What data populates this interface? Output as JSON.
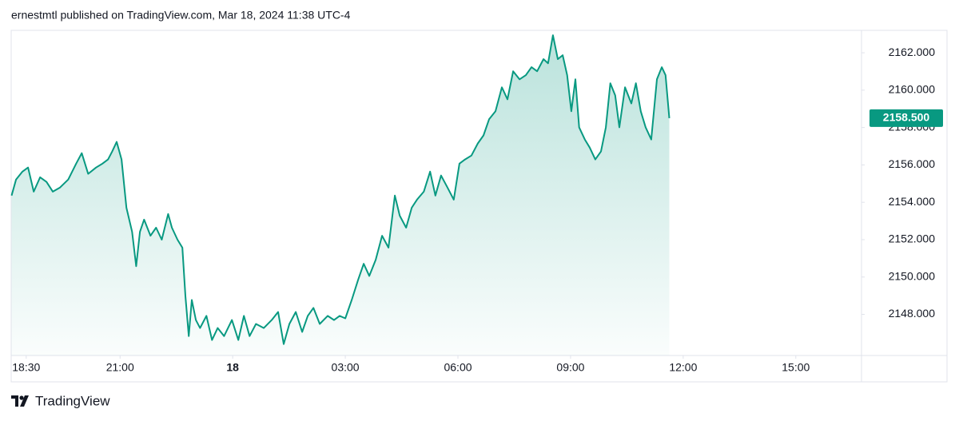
{
  "chart_data": {
    "type": "area",
    "header": "ernestmtl published on TradingView.com, Mar 18, 2024 11:38 UTC-4",
    "brand": "TradingView",
    "color": "#089981",
    "grid": false,
    "xlim": [
      18.1,
      40.75
    ],
    "ylim": [
      2145.8,
      2163.2
    ],
    "xticks": [
      {
        "value": 18.5,
        "label": "18:30"
      },
      {
        "value": 21,
        "label": "21:00"
      },
      {
        "value": 24,
        "label": "18"
      },
      {
        "value": 27,
        "label": "03:00"
      },
      {
        "value": 30,
        "label": "06:00"
      },
      {
        "value": 33,
        "label": "09:00"
      },
      {
        "value": 36,
        "label": "12:00"
      },
      {
        "value": 39,
        "label": "15:00"
      }
    ],
    "yticks": [
      {
        "value": 2148,
        "label": "2148.000"
      },
      {
        "value": 2150,
        "label": "2150.000"
      },
      {
        "value": 2152,
        "label": "2152.000"
      },
      {
        "value": 2154,
        "label": "2154.000"
      },
      {
        "value": 2156,
        "label": "2156.000"
      },
      {
        "value": 2158,
        "label": "2158.000"
      },
      {
        "value": 2160,
        "label": "2160.000"
      },
      {
        "value": 2162,
        "label": "2162.000"
      }
    ],
    "last_price": {
      "value": 2158.5,
      "label": "2158.500"
    },
    "x": [
      18.11,
      18.23,
      18.4,
      18.55,
      18.7,
      18.87,
      19.04,
      19.21,
      19.4,
      19.62,
      19.83,
      19.98,
      20.15,
      20.36,
      20.53,
      20.68,
      20.79,
      20.91,
      21.04,
      21.17,
      21.32,
      21.43,
      21.53,
      21.64,
      21.81,
      21.96,
      22.11,
      22.28,
      22.38,
      22.53,
      22.66,
      22.74,
      22.83,
      22.91,
      23.02,
      23.13,
      23.3,
      23.45,
      23.6,
      23.77,
      23.98,
      24.15,
      24.3,
      24.45,
      24.62,
      24.83,
      25.04,
      25.21,
      25.36,
      25.51,
      25.68,
      25.85,
      26.0,
      26.15,
      26.32,
      26.53,
      26.7,
      26.85,
      27.0,
      27.17,
      27.34,
      27.49,
      27.64,
      27.81,
      27.98,
      28.15,
      28.32,
      28.45,
      28.62,
      28.77,
      28.91,
      29.09,
      29.26,
      29.4,
      29.55,
      29.72,
      29.89,
      30.04,
      30.19,
      30.36,
      30.53,
      30.68,
      30.83,
      31.0,
      31.17,
      31.32,
      31.47,
      31.64,
      31.81,
      31.96,
      32.11,
      32.28,
      32.4,
      32.53,
      32.66,
      32.79,
      32.91,
      33.02,
      33.13,
      33.23,
      33.38,
      33.51,
      33.66,
      33.81,
      33.94,
      34.06,
      34.19,
      34.3,
      34.45,
      34.62,
      34.74,
      34.87,
      35.0,
      35.15,
      35.3,
      35.43,
      35.53,
      35.63
    ],
    "values": [
      2154.36,
      2155.22,
      2155.64,
      2155.86,
      2154.57,
      2155.34,
      2155.09,
      2154.57,
      2154.79,
      2155.22,
      2156.07,
      2156.63,
      2155.52,
      2155.86,
      2156.07,
      2156.29,
      2156.72,
      2157.23,
      2156.29,
      2153.71,
      2152.42,
      2150.58,
      2152.42,
      2153.07,
      2152.21,
      2152.64,
      2152.0,
      2153.37,
      2152.64,
      2152.0,
      2151.57,
      2148.99,
      2146.84,
      2148.77,
      2147.7,
      2147.27,
      2147.92,
      2146.63,
      2147.27,
      2146.84,
      2147.7,
      2146.63,
      2147.92,
      2146.84,
      2147.49,
      2147.27,
      2147.7,
      2148.13,
      2146.41,
      2147.49,
      2148.13,
      2147.06,
      2147.92,
      2148.35,
      2147.49,
      2147.92,
      2147.7,
      2147.92,
      2147.79,
      2148.77,
      2149.85,
      2150.71,
      2150.06,
      2150.92,
      2152.21,
      2151.57,
      2154.36,
      2153.28,
      2152.64,
      2153.71,
      2154.14,
      2154.57,
      2155.64,
      2154.36,
      2155.43,
      2154.79,
      2154.14,
      2156.07,
      2156.29,
      2156.5,
      2157.15,
      2157.58,
      2158.44,
      2158.87,
      2160.15,
      2159.51,
      2161.01,
      2160.58,
      2160.8,
      2161.23,
      2161.01,
      2161.66,
      2161.44,
      2162.94,
      2161.66,
      2161.87,
      2160.8,
      2158.87,
      2160.58,
      2158.01,
      2157.36,
      2156.93,
      2156.29,
      2156.72,
      2158.01,
      2160.37,
      2159.72,
      2158.01,
      2160.15,
      2159.29,
      2160.37,
      2158.87,
      2158.01,
      2157.36,
      2160.58,
      2161.23,
      2160.8,
      2158.5
    ]
  }
}
